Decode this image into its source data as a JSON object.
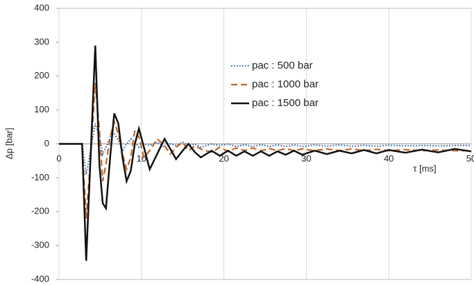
{
  "chart_data": {
    "type": "line",
    "x_label": "τ [ms]",
    "y_label": "Δp [bar]",
    "xlim": [
      0,
      50
    ],
    "xticks": [
      0,
      10,
      20,
      30,
      40,
      50
    ],
    "ylim": [
      -400,
      400
    ],
    "yticks": [
      -400,
      -300,
      -200,
      -100,
      0,
      100,
      200,
      300,
      400
    ],
    "grid": "x",
    "legend": "upper center",
    "x": [
      0,
      2.8,
      3.3,
      3.9,
      4.4,
      4.9,
      5.3,
      5.7,
      6.2,
      6.7,
      7.2,
      7.7,
      8.2,
      8.7,
      9.2,
      9.7,
      10.3,
      11,
      11.9,
      12.8,
      13.5,
      14.2,
      15,
      15.7,
      16.5,
      17.2,
      18.5,
      19.5,
      20.5,
      21.5,
      22.5,
      23.5,
      24.5,
      25.5,
      26.5,
      27.5,
      28.5,
      29.5,
      31,
      32.5,
      34,
      35.5,
      37,
      38.5,
      40,
      42,
      44,
      46,
      48,
      50
    ],
    "series": [
      {
        "name": "pac : 500 bar",
        "color": "#2e5fa3",
        "dash": "dotted",
        "values": [
          0,
          0,
          -90,
          -10,
          60,
          20,
          -30,
          -10,
          20,
          30,
          10,
          -20,
          0,
          15,
          5,
          -10,
          0,
          -5,
          5,
          -10,
          0,
          -5,
          5,
          -5,
          0,
          -10,
          0,
          -5,
          0,
          -8,
          -2,
          -8,
          -2,
          -8,
          -3,
          -8,
          -3,
          -8,
          -3,
          -7,
          -3,
          -7,
          -4,
          -7,
          -4,
          -6,
          -5,
          -6,
          -5,
          -5
        ]
      },
      {
        "name": "pac : 1000 bar",
        "color": "#c0662a",
        "dash": "dashed",
        "values": [
          0,
          0,
          -220,
          -20,
          180,
          40,
          -110,
          -60,
          20,
          65,
          30,
          -30,
          -75,
          -40,
          40,
          20,
          -40,
          -20,
          15,
          -5,
          -30,
          -10,
          5,
          -20,
          -5,
          -15,
          -25,
          -10,
          -22,
          -12,
          -20,
          -12,
          -20,
          -14,
          -20,
          -14,
          -20,
          -15,
          -20,
          -15,
          -20,
          -15,
          -20,
          -16,
          -20,
          -17,
          -20,
          -18,
          -20,
          -20
        ]
      },
      {
        "name": "pac : 1500 bar",
        "color": "#111111",
        "dash": "solid",
        "values": [
          0,
          0,
          -345,
          0,
          290,
          -60,
          -175,
          -190,
          -40,
          90,
          60,
          -40,
          -110,
          -80,
          0,
          45,
          -10,
          -75,
          -30,
          15,
          -15,
          -45,
          -20,
          0,
          -25,
          -40,
          -20,
          -35,
          -20,
          -35,
          -22,
          -35,
          -22,
          -35,
          -22,
          -32,
          -20,
          -32,
          -20,
          -30,
          -20,
          -28,
          -18,
          -28,
          -18,
          -26,
          -17,
          -25,
          -15,
          -22
        ]
      }
    ]
  }
}
